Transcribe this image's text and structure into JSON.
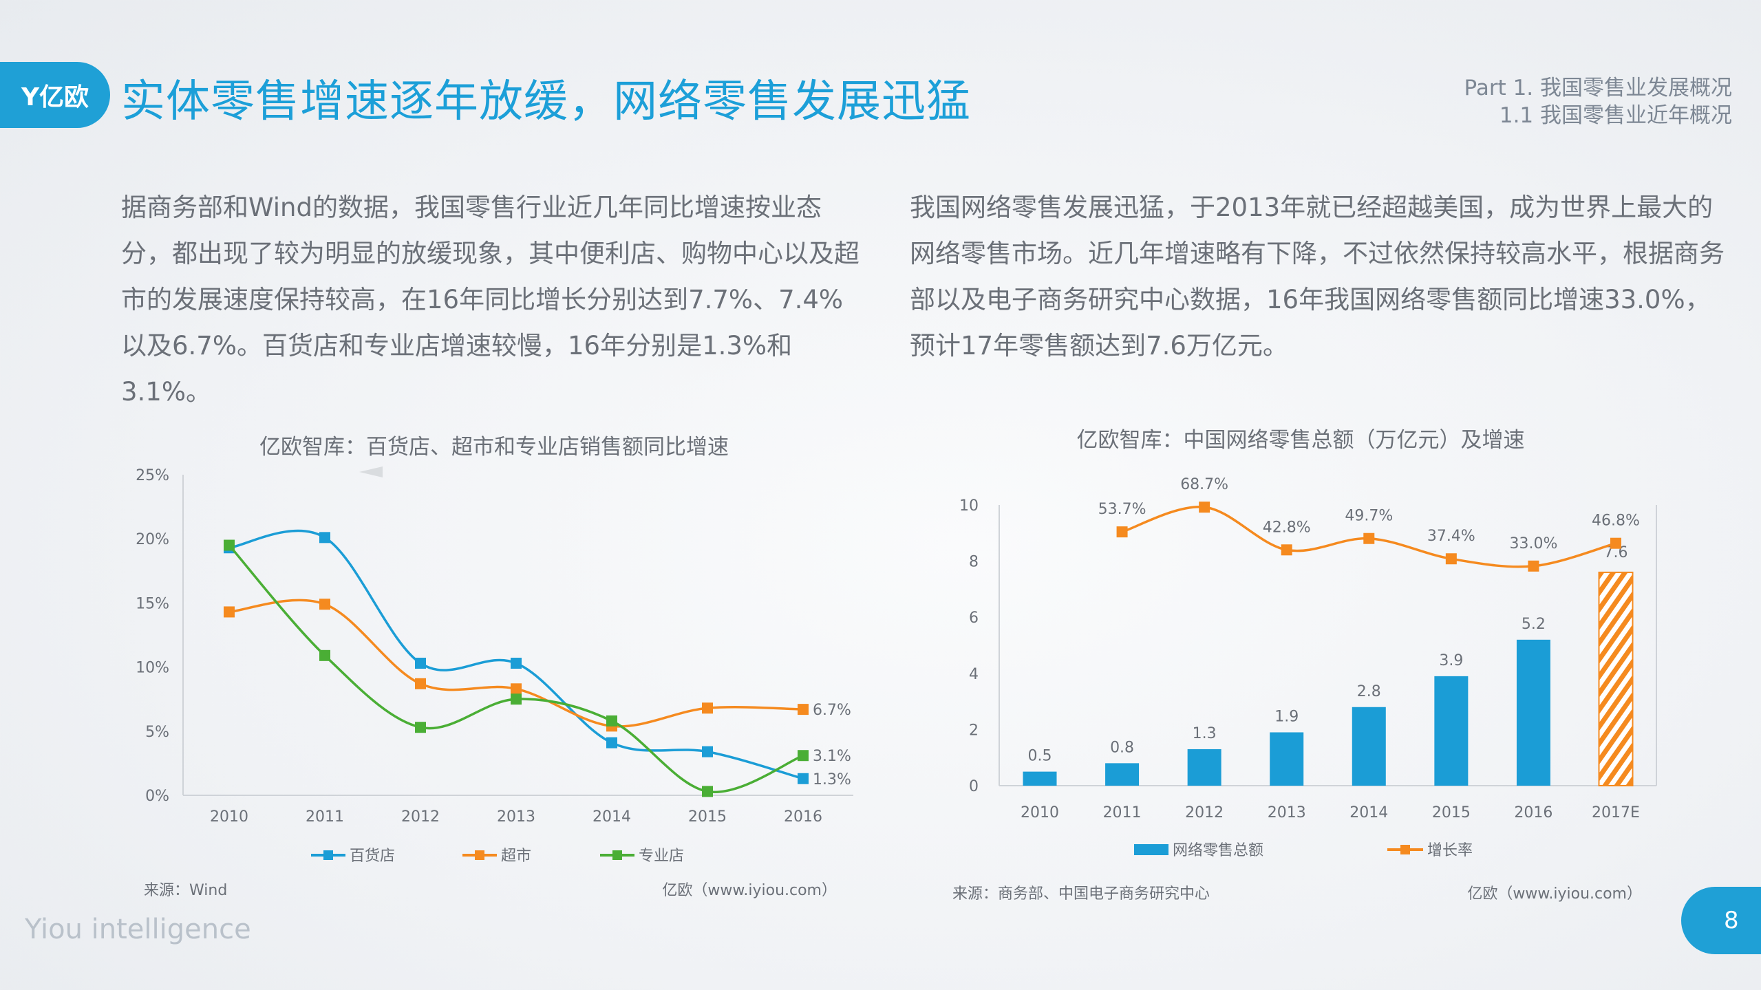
{
  "header": {
    "logo_text": "Y亿欧",
    "title": "实体零售增速逐年放缓，网络零售发展迅猛",
    "breadcrumb_line1": "Part 1. 我国零售业发展概况",
    "breadcrumb_line2": "1.1 我国零售业近年概况"
  },
  "paragraphs": {
    "left": "据商务部和Wind的数据，我国零售行业近几年同比增速按业态分，都出现了较为明显的放缓现象，其中便利店、购物中心以及超市的发展速度保持较高，在16年同比增长分别达到7.7%、7.4%以及6.7%。百货店和专业店增速较慢，16年分别是1.3%和3.1%。",
    "right": "我国网络零售发展迅猛，于2013年就已经超越美国，成为世界上最大的网络零售市场。近几年增速略有下降，不过依然保持较高水平，根据商务部以及电子商务研究中心数据，16年我国网络零售额同比增速33.0%，预计17年零售额达到7.6万亿元。"
  },
  "chart_data": [
    {
      "type": "line",
      "title": "亿欧智库：百货店、超市和专业店销售额同比增速",
      "categories": [
        "2010",
        "2011",
        "2012",
        "2013",
        "2014",
        "2015",
        "2016"
      ],
      "ylim": [
        0,
        25
      ],
      "yticks": [
        "0%",
        "5%",
        "10%",
        "15%",
        "20%",
        "25%"
      ],
      "smooth": true,
      "grid": false,
      "legend_position": "bottom",
      "series": [
        {
          "name": "百货店",
          "color": "#1b9dd6",
          "values": [
            19.3,
            20.1,
            10.3,
            10.3,
            4.1,
            3.4,
            1.3
          ],
          "end_label": "1.3%"
        },
        {
          "name": "超市",
          "color": "#f58a1f",
          "values": [
            14.3,
            14.9,
            8.7,
            8.3,
            5.4,
            6.8,
            6.7
          ],
          "end_label": "6.7%"
        },
        {
          "name": "专业店",
          "color": "#4aae35",
          "values": [
            19.5,
            10.9,
            5.3,
            7.5,
            5.8,
            0.3,
            3.1
          ],
          "end_label": "3.1%"
        }
      ],
      "source": "来源：Wind",
      "credit": "亿欧（www.iyiou.com）"
    },
    {
      "type": "bar+line",
      "title": "亿欧智库：中国网络零售总额（万亿元）及增速",
      "categories": [
        "2010",
        "2011",
        "2012",
        "2013",
        "2014",
        "2015",
        "2016",
        "2017E"
      ],
      "ylim": [
        0,
        10
      ],
      "yticks": [
        "0",
        "2",
        "4",
        "6",
        "8",
        "10"
      ],
      "secondary_ylim": [
        -100,
        70
      ],
      "secondary_axis_visible": false,
      "grid": false,
      "legend_position": "bottom",
      "bars": {
        "name": "网络零售总额",
        "color": "#1b9dd6",
        "estimate_color": "#f58a1f",
        "estimate_pattern": "hatched",
        "values": [
          0.5,
          0.8,
          1.3,
          1.9,
          2.8,
          3.9,
          5.2,
          7.6
        ],
        "labels": [
          "0.5",
          "0.8",
          "1.3",
          "1.9",
          "2.8",
          "3.9",
          "5.2",
          "7.6"
        ]
      },
      "line": {
        "name": "增长率",
        "color": "#f58a1f",
        "values": [
          null,
          53.7,
          68.7,
          42.8,
          49.7,
          37.4,
          33.0,
          46.8
        ],
        "labels": [
          "",
          "53.7%",
          "68.7%",
          "42.8%",
          "49.7%",
          "37.4%",
          "33.0%",
          "46.8%"
        ]
      },
      "source": "来源：商务部、中国电子商务研究中心",
      "credit": "亿欧（www.iyiou.com）"
    }
  ],
  "footer": {
    "brand": "Yiou intelligence",
    "page_number": "8"
  }
}
